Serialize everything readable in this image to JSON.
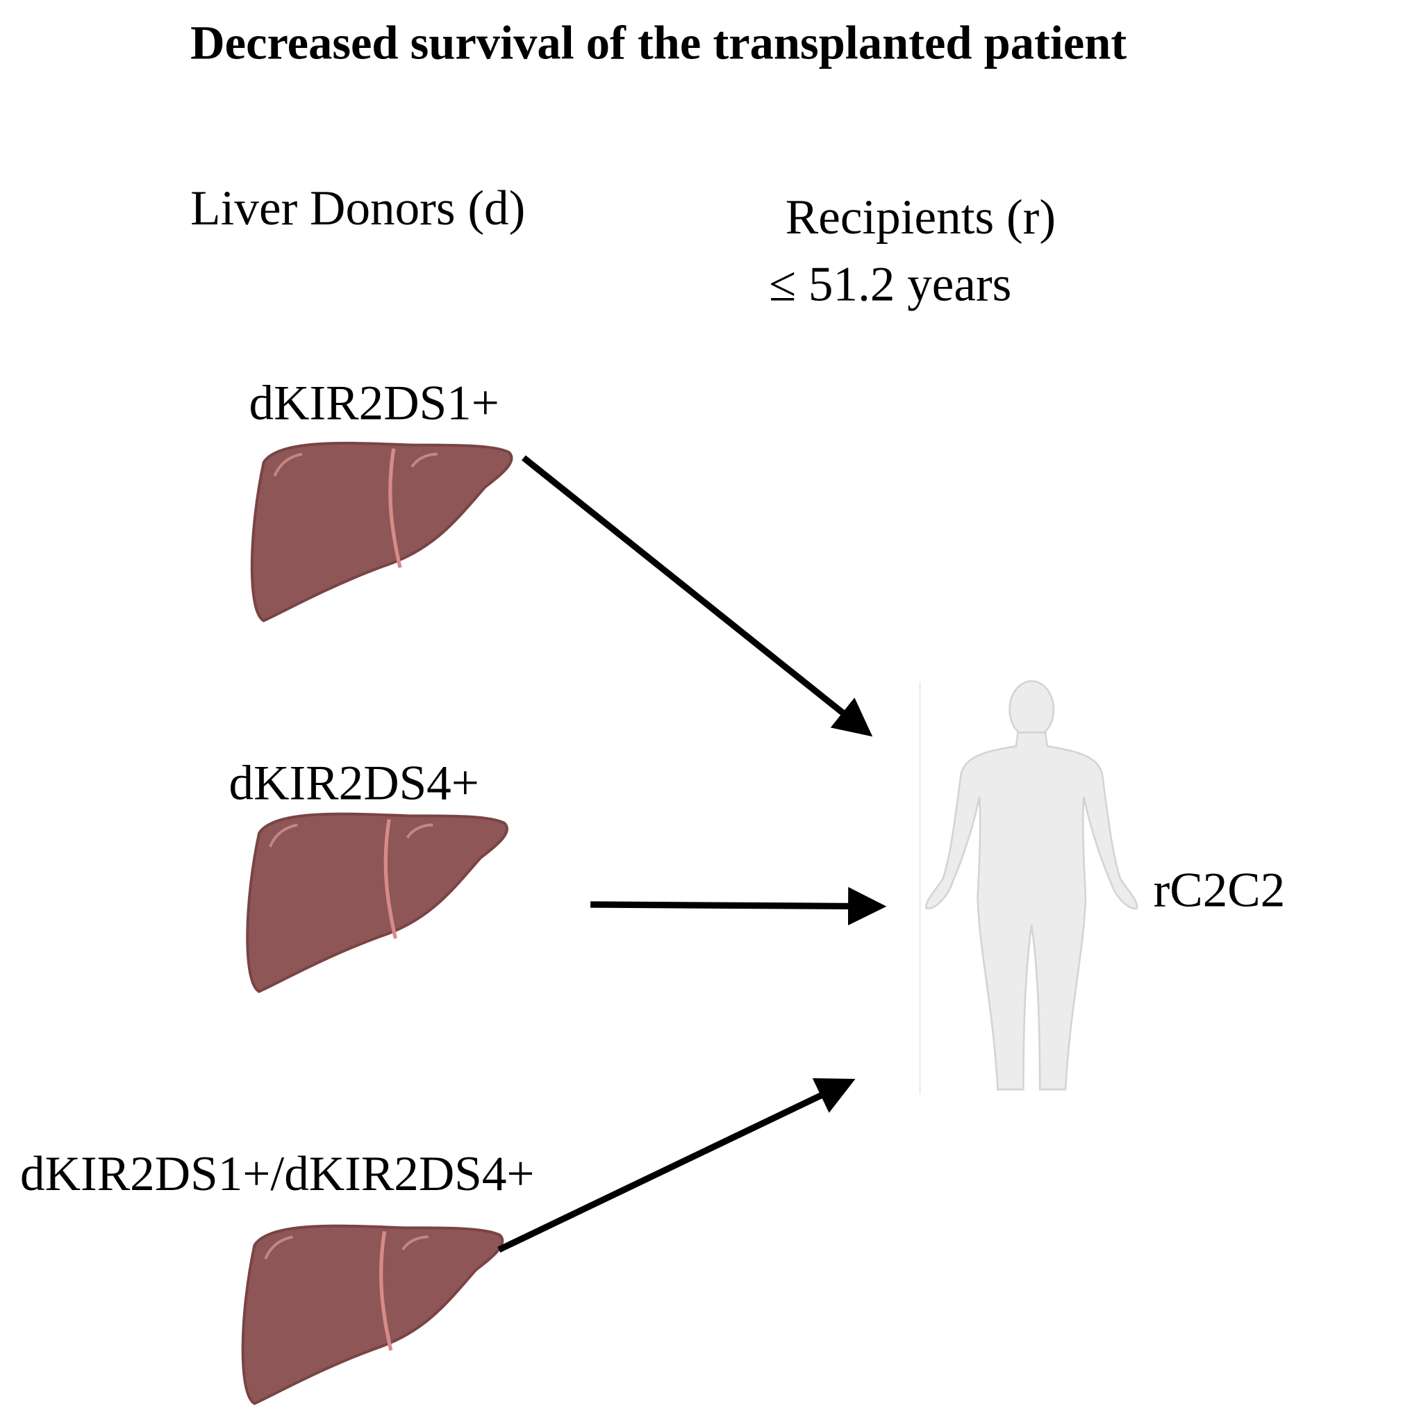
{
  "title": "Decreased survival of the transplanted patient",
  "donors_heading": "Liver Donors (d)",
  "recipients_heading": "Recipients (r)",
  "recipients_age": "≤ 51.2 years",
  "donors": [
    {
      "label": "dKIR2DS1+"
    },
    {
      "label": "dKIR2DS4+"
    },
    {
      "label": "dKIR2DS1+/dKIR2DS4+"
    }
  ],
  "recipient": {
    "label": "rC2C2"
  }
}
